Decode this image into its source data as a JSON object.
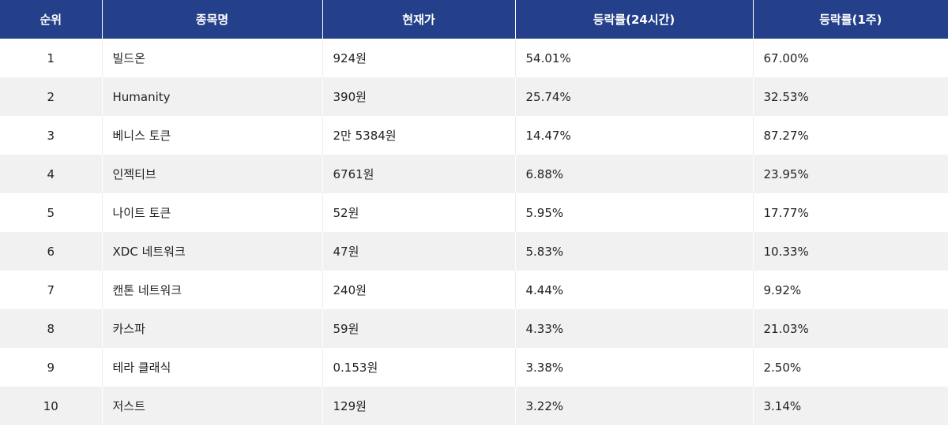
{
  "table": {
    "headers": [
      "순위",
      "종목명",
      "현재가",
      "등락률(24시간)",
      "등락률(1주)"
    ],
    "rows": [
      [
        "1",
        "빌드온",
        "924원",
        "54.01%",
        "67.00%"
      ],
      [
        "2",
        "Humanity",
        "390원",
        "25.74%",
        "32.53%"
      ],
      [
        "3",
        "베니스 토큰",
        "2만 5384원",
        "14.47%",
        "87.27%"
      ],
      [
        "4",
        "인젝티브",
        "6761원",
        "6.88%",
        "23.95%"
      ],
      [
        "5",
        "나이트 토큰",
        "52원",
        "5.95%",
        "17.77%"
      ],
      [
        "6",
        "XDC 네트워크",
        "47원",
        "5.83%",
        "10.33%"
      ],
      [
        "7",
        "캔톤 네트워크",
        "240원",
        "4.44%",
        "9.92%"
      ],
      [
        "8",
        "카스파",
        "59원",
        "4.33%",
        "21.03%"
      ],
      [
        "9",
        "테라 클래식",
        "0.153원",
        "3.38%",
        "2.50%"
      ],
      [
        "10",
        "저스트",
        "129원",
        "3.22%",
        "3.14%"
      ]
    ]
  },
  "colors": {
    "header_bg": "#25408a",
    "header_text": "#ffffff",
    "row_alt_bg": "#f1f1f1",
    "text": "#222222"
  }
}
